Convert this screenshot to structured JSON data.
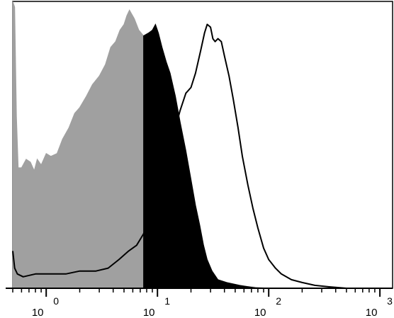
{
  "chart_data": {
    "type": "area",
    "title": "",
    "xlabel": "",
    "ylabel": "",
    "x_scale": "log",
    "xlim": [
      0.5,
      1300
    ],
    "ylim": [
      0,
      100
    ],
    "grid": false,
    "legend": "none",
    "x_ticks": [
      {
        "value": 1,
        "base": "10",
        "exp": "0"
      },
      {
        "value": 10,
        "base": "10",
        "exp": "1"
      },
      {
        "value": 100,
        "base": "10",
        "exp": "2"
      },
      {
        "value": 1000,
        "base": "10",
        "exp": "3"
      }
    ],
    "series": [
      {
        "style": "filled",
        "color": "#a0a0a0",
        "stroke": "#a0a0a0",
        "points": [
          [
            0.5,
            100
          ],
          [
            0.52,
            98
          ],
          [
            0.54,
            60
          ],
          [
            0.56,
            42
          ],
          [
            0.6,
            42
          ],
          [
            0.66,
            45
          ],
          [
            0.72,
            44
          ],
          [
            0.78,
            41
          ],
          [
            0.83,
            45
          ],
          [
            0.9,
            43
          ],
          [
            1.0,
            47
          ],
          [
            1.1,
            46
          ],
          [
            1.25,
            47
          ],
          [
            1.4,
            52
          ],
          [
            1.6,
            56
          ],
          [
            1.8,
            61
          ],
          [
            2.0,
            63
          ],
          [
            2.3,
            67
          ],
          [
            2.6,
            71
          ],
          [
            3.0,
            74
          ],
          [
            3.4,
            78
          ],
          [
            3.8,
            84
          ],
          [
            4.2,
            86
          ],
          [
            4.6,
            90
          ],
          [
            5.0,
            92
          ],
          [
            5.3,
            95
          ],
          [
            5.6,
            97
          ],
          [
            6.2,
            94
          ],
          [
            6.8,
            90
          ],
          [
            7.5,
            88
          ],
          [
            8.3,
            86
          ],
          [
            9.0,
            80
          ],
          [
            10.0,
            74
          ],
          [
            11.0,
            70
          ],
          [
            12.0,
            66
          ],
          [
            13.5,
            58
          ],
          [
            15.0,
            48
          ],
          [
            17.0,
            37
          ],
          [
            19.0,
            27
          ],
          [
            21.0,
            19
          ],
          [
            23.0,
            13
          ],
          [
            26.0,
            8
          ],
          [
            29.0,
            5
          ],
          [
            33.0,
            3
          ],
          [
            40.0,
            2
          ],
          [
            50.0,
            1
          ],
          [
            70.0,
            0.5
          ],
          [
            100.0,
            0
          ]
        ]
      },
      {
        "style": "filled",
        "color": "#000000",
        "stroke": "#000000",
        "points": [
          [
            7.5,
            88
          ],
          [
            8.3,
            89
          ],
          [
            9.0,
            90
          ],
          [
            9.6,
            92
          ],
          [
            10.2,
            89
          ],
          [
            11.0,
            84
          ],
          [
            12.0,
            79
          ],
          [
            13.0,
            75
          ],
          [
            14.5,
            67
          ],
          [
            16.0,
            58
          ],
          [
            18.0,
            48
          ],
          [
            20.0,
            38
          ],
          [
            22.0,
            29
          ],
          [
            24.0,
            22
          ],
          [
            26.0,
            15
          ],
          [
            28.0,
            10
          ],
          [
            31.0,
            6
          ],
          [
            35.0,
            3
          ],
          [
            42.0,
            2
          ],
          [
            55.0,
            1
          ],
          [
            80.0,
            0
          ]
        ]
      },
      {
        "style": "outline",
        "color": "none",
        "stroke": "#000000",
        "points": [
          [
            0.5,
            13
          ],
          [
            0.52,
            7
          ],
          [
            0.55,
            5
          ],
          [
            0.62,
            4
          ],
          [
            0.8,
            5
          ],
          [
            1.0,
            5
          ],
          [
            1.5,
            5
          ],
          [
            2.0,
            6
          ],
          [
            2.8,
            6
          ],
          [
            3.6,
            7
          ],
          [
            4.5,
            10
          ],
          [
            5.5,
            13
          ],
          [
            6.5,
            15
          ],
          [
            7.5,
            19
          ],
          [
            8.5,
            24
          ],
          [
            10.0,
            31
          ],
          [
            11.5,
            39
          ],
          [
            13.0,
            48
          ],
          [
            14.5,
            56
          ],
          [
            16.0,
            62
          ],
          [
            18.0,
            68
          ],
          [
            20.0,
            70
          ],
          [
            22.0,
            75
          ],
          [
            24.5,
            83
          ],
          [
            26.5,
            89
          ],
          [
            28.0,
            92
          ],
          [
            30.0,
            91
          ],
          [
            31.5,
            87
          ],
          [
            33.0,
            86
          ],
          [
            35.0,
            87
          ],
          [
            37.5,
            86
          ],
          [
            40.0,
            81
          ],
          [
            44.0,
            74
          ],
          [
            48.0,
            66
          ],
          [
            53.0,
            56
          ],
          [
            58.0,
            46
          ],
          [
            65.0,
            36
          ],
          [
            72.0,
            28
          ],
          [
            80.0,
            21
          ],
          [
            90.0,
            14
          ],
          [
            100.0,
            10
          ],
          [
            115.0,
            7
          ],
          [
            130.0,
            5
          ],
          [
            160.0,
            3
          ],
          [
            200.0,
            2
          ],
          [
            260.0,
            1
          ],
          [
            350.0,
            0.5
          ],
          [
            500.0,
            0
          ]
        ]
      }
    ]
  }
}
